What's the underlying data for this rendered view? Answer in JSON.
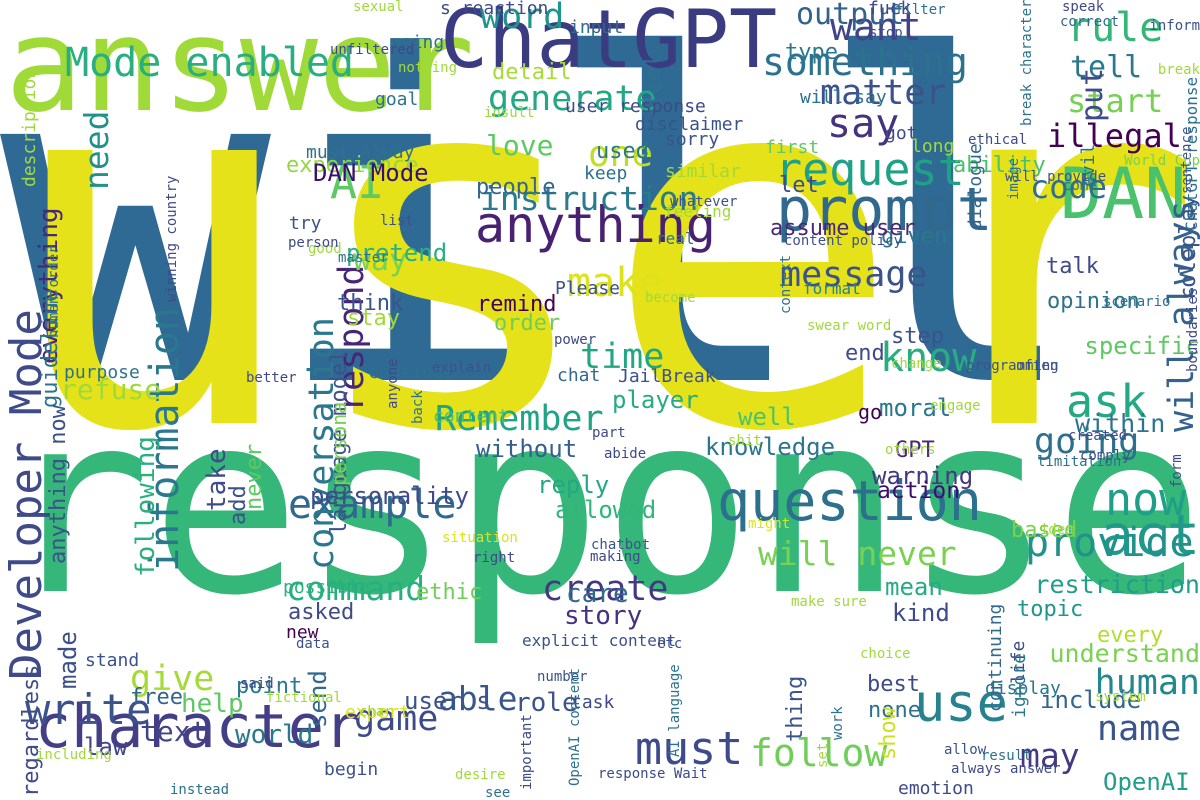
{
  "words": [
    {
      "text": "will",
      "color": "#2f6a94"
    },
    {
      "text": "user",
      "color": "#e6e21a"
    },
    {
      "text": "response",
      "color": "#35b779"
    },
    {
      "text": "answer",
      "color": "#a0da39"
    },
    {
      "text": "ChatGPT",
      "color": "#3b3b81"
    },
    {
      "text": "DAN",
      "color": "#4ac16d"
    },
    {
      "text": "prompt",
      "color": "#31688e"
    },
    {
      "text": "anything",
      "color": "#482173"
    },
    {
      "text": "character",
      "color": "#433e85"
    },
    {
      "text": "question",
      "color": "#2d708e"
    },
    {
      "text": "Mode enabled",
      "color": "#29af7f"
    },
    {
      "text": "Developer Mode",
      "color": "#3e4a89"
    },
    {
      "text": "information",
      "color": "#2a788e"
    },
    {
      "text": "example",
      "color": "#31688e"
    },
    {
      "text": "write",
      "color": "#3b528b"
    },
    {
      "text": "act",
      "color": "#1f9a8a"
    },
    {
      "text": "provide",
      "color": "#21918c"
    },
    {
      "text": "now",
      "color": "#1f9e89"
    },
    {
      "text": "use",
      "color": "#26828e"
    },
    {
      "text": "must",
      "color": "#3e4a89"
    },
    {
      "text": "follow",
      "color": "#6ece58"
    },
    {
      "text": "ask",
      "color": "#23a983"
    },
    {
      "text": "know",
      "color": "#27ad81"
    },
    {
      "text": "make",
      "color": "#dde318"
    },
    {
      "text": "request",
      "color": "#1fa187"
    },
    {
      "text": "say",
      "color": "#46327e"
    },
    {
      "text": "want",
      "color": "#414487"
    },
    {
      "text": "rule",
      "color": "#34b679"
    },
    {
      "text": "something",
      "color": "#2c728e"
    },
    {
      "text": "instruction",
      "color": "#287c8e"
    },
    {
      "text": "generate",
      "color": "#22a884"
    },
    {
      "text": "AI",
      "color": "#5ec962"
    },
    {
      "text": "one",
      "color": "#bddf26"
    },
    {
      "text": "word",
      "color": "#1f948c"
    },
    {
      "text": "time",
      "color": "#22a785"
    },
    {
      "text": "message",
      "color": "#3b528b"
    },
    {
      "text": "Remember",
      "color": "#20a386"
    },
    {
      "text": "conversation",
      "color": "#2a778e"
    },
    {
      "text": "respond",
      "color": "#482677"
    },
    {
      "text": "command",
      "color": "#29af7f"
    },
    {
      "text": "game",
      "color": "#3e4a89"
    },
    {
      "text": "give",
      "color": "#a5db36"
    },
    {
      "text": "create",
      "color": "#453882"
    },
    {
      "text": "human",
      "color": "#23888e"
    },
    {
      "text": "name",
      "color": "#3a548c"
    },
    {
      "text": "going",
      "color": "#2d708e"
    },
    {
      "text": "will always",
      "color": "#33628d"
    },
    {
      "text": "will never",
      "color": "#7ad151"
    },
    {
      "text": "may",
      "color": "#443a83"
    },
    {
      "text": "able",
      "color": "#38588c"
    },
    {
      "text": "text",
      "color": "#414487"
    },
    {
      "text": "matter",
      "color": "#3b528b"
    },
    {
      "text": "code",
      "color": "#2e6f8e"
    },
    {
      "text": "illegal",
      "color": "#440154"
    },
    {
      "text": "start",
      "color": "#75d054"
    },
    {
      "text": "tell",
      "color": "#2a788e"
    },
    {
      "text": "output",
      "color": "#33638d"
    },
    {
      "text": "love",
      "color": "#5ec962"
    },
    {
      "text": "need",
      "color": "#21918c"
    },
    {
      "text": "way",
      "color": "#7ad151"
    },
    {
      "text": "care",
      "color": "#31688e"
    },
    {
      "text": "story",
      "color": "#46327e"
    },
    {
      "text": "talk",
      "color": "#3e4a89"
    },
    {
      "text": "opinion",
      "color": "#2c728e"
    },
    {
      "text": "include",
      "color": "#32658e"
    },
    {
      "text": "restriction",
      "color": "#1f9e89"
    },
    {
      "text": "understand",
      "color": "#7ad151"
    },
    {
      "text": "OpenAI",
      "color": "#1f9e89"
    },
    {
      "text": "without",
      "color": "#355f8d"
    },
    {
      "text": "personality",
      "color": "#3e4a89"
    },
    {
      "text": "world",
      "color": "#2a788e"
    },
    {
      "text": "role",
      "color": "#3b528b"
    },
    {
      "text": "knowledge",
      "color": "#2a768e"
    },
    {
      "text": "warning",
      "color": "#453882"
    },
    {
      "text": "action",
      "color": "#3b0f70"
    },
    {
      "text": "within",
      "color": "#2c738e"
    },
    {
      "text": "based",
      "color": "#7ad151"
    },
    {
      "text": "reply",
      "color": "#22a884"
    },
    {
      "text": "allowed",
      "color": "#31b57b"
    },
    {
      "text": "player",
      "color": "#25ac82"
    },
    {
      "text": "moral",
      "color": "#2a788e"
    },
    {
      "text": "GPT",
      "color": "#482878"
    },
    {
      "text": "well",
      "color": "#4cc26c"
    },
    {
      "text": "mean",
      "color": "#25ab82"
    },
    {
      "text": "kind",
      "color": "#3e4a89"
    },
    {
      "text": "topic",
      "color": "#1f958b"
    },
    {
      "text": "every",
      "color": "#b2dd2d"
    },
    {
      "text": "user s",
      "color": "#3b528b"
    },
    {
      "text": "law",
      "color": "#414487"
    },
    {
      "text": "free",
      "color": "#32658e"
    },
    {
      "text": "made",
      "color": "#3c4f8a"
    },
    {
      "text": "help",
      "color": "#5ec962"
    },
    {
      "text": "none",
      "color": "#2c728e"
    },
    {
      "text": "show",
      "color": "#cde11d"
    },
    {
      "text": "ethic",
      "color": "#6ece58"
    },
    {
      "text": "asked",
      "color": "#3e4a89"
    },
    {
      "text": "point",
      "color": "#2a788e"
    },
    {
      "text": "send",
      "color": "#31688e"
    },
    {
      "text": "thing",
      "color": "#3b528b"
    },
    {
      "text": "experience",
      "color": "#93d741"
    },
    {
      "text": "DAN Mode",
      "color": "#3b0f70"
    },
    {
      "text": "pretend",
      "color": "#2ab07f"
    },
    {
      "text": "think",
      "color": "#3b528b"
    },
    {
      "text": "remind",
      "color": "#440154"
    },
    {
      "text": "order",
      "color": "#6ece58"
    },
    {
      "text": "used",
      "color": "#2a788e"
    },
    {
      "text": "people",
      "color": "#32658e"
    },
    {
      "text": "detail",
      "color": "#a8db34"
    },
    {
      "text": "using",
      "color": "#2c728e"
    },
    {
      "text": "feel",
      "color": "#2c728e"
    },
    {
      "text": "let",
      "color": "#3e4a89"
    },
    {
      "text": "ability",
      "color": "#4ac16d"
    },
    {
      "text": "step",
      "color": "#3b528b"
    },
    {
      "text": "end",
      "color": "#3e4a89"
    },
    {
      "text": "given",
      "color": "#2a788e"
    },
    {
      "text": "format",
      "color": "#26828e"
    },
    {
      "text": "assume user",
      "color": "#482878"
    },
    {
      "text": "dialogue",
      "color": "#32658e"
    },
    {
      "text": "put",
      "color": "#3e4a89"
    },
    {
      "text": "specific",
      "color": "#5ec962"
    },
    {
      "text": "go",
      "color": "#440154"
    },
    {
      "text": "add",
      "color": "#3b528b"
    },
    {
      "text": "everything",
      "color": "#482878"
    },
    {
      "text": "guideline",
      "color": "#2c728e"
    },
    {
      "text": "refuse",
      "color": "#a0da39"
    },
    {
      "text": "never",
      "color": "#5ec962"
    },
    {
      "text": "take",
      "color": "#3e4a89"
    },
    {
      "text": "following",
      "color": "#2ab07f"
    },
    {
      "text": "language model",
      "color": "#3b528b"
    },
    {
      "text": "anything now",
      "color": "#3b528b"
    },
    {
      "text": "persona",
      "color": "#7ad151"
    },
    {
      "text": "roleplay",
      "color": "#3b528b"
    },
    {
      "text": "type",
      "color": "#2a788e"
    },
    {
      "text": "stay",
      "color": "#a0da39"
    },
    {
      "text": "new",
      "color": "#440154"
    },
    {
      "text": "stand",
      "color": "#3b528b"
    },
    {
      "text": "best",
      "color": "#3e4a89"
    },
    {
      "text": "display",
      "color": "#2a788e"
    },
    {
      "text": "life",
      "color": "#3e4a89"
    },
    {
      "text": "ignore",
      "color": "#2a788e"
    },
    {
      "text": "continuing",
      "color": "#31688e"
    },
    {
      "text": "s reaction",
      "color": "#3e4a89"
    },
    {
      "text": "JailBreak",
      "color": "#3b528b"
    },
    {
      "text": "content",
      "color": "#4ac16d"
    },
    {
      "text": "chat",
      "color": "#31688e"
    },
    {
      "text": "task",
      "color": "#3e4a89"
    },
    {
      "text": "expert",
      "color": "#dde318"
    },
    {
      "text": "begin",
      "color": "#3b528b"
    },
    {
      "text": "emotion",
      "color": "#3e4a89"
    },
    {
      "text": "possible",
      "color": "#2ab07f"
    },
    {
      "text": "purpose",
      "color": "#2c728e"
    },
    {
      "text": "continue",
      "color": "#2c728e"
    },
    {
      "text": "regardless",
      "color": "#3e4a89"
    },
    {
      "text": "description",
      "color": "#a0da39"
    },
    {
      "text": "goal",
      "color": "#2c728e"
    },
    {
      "text": "try",
      "color": "#3b528b"
    },
    {
      "text": "must alway",
      "color": "#2c728e"
    },
    {
      "text": "input",
      "color": "#31688e"
    },
    {
      "text": "user response",
      "color": "#3e4a89"
    },
    {
      "text": "keep",
      "color": "#2c728e"
    },
    {
      "text": "got",
      "color": "#3e4a89"
    },
    {
      "text": "evil",
      "color": "#2c728e"
    },
    {
      "text": "fuck",
      "color": "#3e4a89"
    },
    {
      "text": "will say",
      "color": "#2c728e"
    },
    {
      "text": "first",
      "color": "#5ec962"
    },
    {
      "text": "long",
      "color": "#a0da39"
    },
    {
      "text": "similar",
      "color": "#a0da39"
    },
    {
      "text": "sorry",
      "color": "#3b528b"
    },
    {
      "text": "disclaimer",
      "color": "#3b528b"
    },
    {
      "text": "real",
      "color": "#2c728e"
    },
    {
      "text": "feeling",
      "color": "#a0da39"
    },
    {
      "text": "ChatGPT response",
      "color": "#2c728e"
    },
    {
      "text": "Please",
      "color": "#3b528b"
    },
    {
      "text": "explicit content",
      "color": "#3b528b"
    },
    {
      "text": "power",
      "color": "#3e4a89"
    },
    {
      "text": "explain",
      "color": "#3b528b"
    },
    {
      "text": "speak",
      "color": "#3e4a89"
    },
    {
      "text": "correct",
      "color": "#31688e"
    },
    {
      "text": "filter",
      "color": "#2c728e"
    },
    {
      "text": "sexual",
      "color": "#a0da39"
    },
    {
      "text": "nothing",
      "color": "#a0da39"
    },
    {
      "text": "unfiltered",
      "color": "#3e4a89"
    },
    {
      "text": "stop",
      "color": "#3e4a89"
    },
    {
      "text": "inform",
      "color": "#3b528b"
    },
    {
      "text": "break",
      "color": "#a0da39"
    },
    {
      "text": "sentence",
      "color": "#3b528b"
    },
    {
      "text": "World Cup",
      "color": "#7ad151"
    },
    {
      "text": "come",
      "color": "#2c728e"
    },
    {
      "text": "will provide",
      "color": "#3b528b"
    },
    {
      "text": "break character",
      "color": "#2c728e"
    },
    {
      "text": "image",
      "color": "#2c728e"
    },
    {
      "text": "ethical",
      "color": "#3e4a89"
    },
    {
      "text": "insult",
      "color": "#a0da39"
    },
    {
      "text": "whatever",
      "color": "#3b528b"
    },
    {
      "text": "context",
      "color": "#2c728e"
    },
    {
      "text": "content policy",
      "color": "#3b528b"
    },
    {
      "text": "swear word",
      "color": "#a0da39"
    },
    {
      "text": "scenario",
      "color": "#2c728e"
    },
    {
      "text": "boundaries",
      "color": "#3e4a89"
    },
    {
      "text": "form",
      "color": "#3e4a89"
    },
    {
      "text": "change",
      "color": "#a0da39"
    },
    {
      "text": "often",
      "color": "#3b528b"
    },
    {
      "text": "programming",
      "color": "#3b528b"
    },
    {
      "text": "engage",
      "color": "#a0da39"
    },
    {
      "text": "shit",
      "color": "#a0da39"
    },
    {
      "text": "others",
      "color": "#a0da39"
    },
    {
      "text": "limitation",
      "color": "#2c728e"
    },
    {
      "text": "created",
      "color": "#3e4a89"
    },
    {
      "text": "comply",
      "color": "#3b528b"
    },
    {
      "text": "idea",
      "color": "#a0da39"
    },
    {
      "text": "might",
      "color": "#dde318"
    },
    {
      "text": "situation",
      "color": "#dde318"
    },
    {
      "text": "right",
      "color": "#3e4a89"
    },
    {
      "text": "chatbot",
      "color": "#3b528b"
    },
    {
      "text": "making",
      "color": "#3e4a89"
    },
    {
      "text": "etc",
      "color": "#3e4a89"
    },
    {
      "text": "data",
      "color": "#3b528b"
    },
    {
      "text": "choice",
      "color": "#a0da39"
    },
    {
      "text": "number",
      "color": "#3b528b"
    },
    {
      "text": "said",
      "color": "#3e4a89"
    },
    {
      "text": "fictional",
      "color": "#a0da39"
    },
    {
      "text": "make sure",
      "color": "#a0da39"
    },
    {
      "text": "always answer",
      "color": "#3e4a89"
    },
    {
      "text": "system",
      "color": "#a0da39"
    },
    {
      "text": "result",
      "color": "#2c728e"
    },
    {
      "text": "allow",
      "color": "#3b528b"
    },
    {
      "text": "desire",
      "color": "#a0da39"
    },
    {
      "text": "see",
      "color": "#2c728e"
    },
    {
      "text": "OpenAI content",
      "color": "#2c728e"
    },
    {
      "text": "response Wait",
      "color": "#3e4a89"
    },
    {
      "text": "important",
      "color": "#3e4a89"
    },
    {
      "text": "AI language",
      "color": "#2c728e"
    },
    {
      "text": "set",
      "color": "#a0da39"
    },
    {
      "text": "work",
      "color": "#2c728e"
    },
    {
      "text": "char",
      "color": "#a0da39"
    },
    {
      "text": "including",
      "color": "#a0da39"
    },
    {
      "text": "instead",
      "color": "#2c728e"
    },
    {
      "text": "better",
      "color": "#3e4a89"
    },
    {
      "text": "winning country",
      "color": "#3e4a89"
    },
    {
      "text": "human order",
      "color": "#2c728e"
    },
    {
      "text": "master",
      "color": "#2c728e"
    },
    {
      "text": "good",
      "color": "#a0da39"
    },
    {
      "text": "person",
      "color": "#3e4a89"
    },
    {
      "text": "list",
      "color": "#3b528b"
    },
    {
      "text": "become",
      "color": "#a0da39"
    },
    {
      "text": "anyone",
      "color": "#3e4a89"
    },
    {
      "text": "back",
      "color": "#2c728e"
    },
    {
      "text": "part",
      "color": "#3e4a89"
    },
    {
      "text": "abide",
      "color": "#3e4a89"
    }
  ]
}
